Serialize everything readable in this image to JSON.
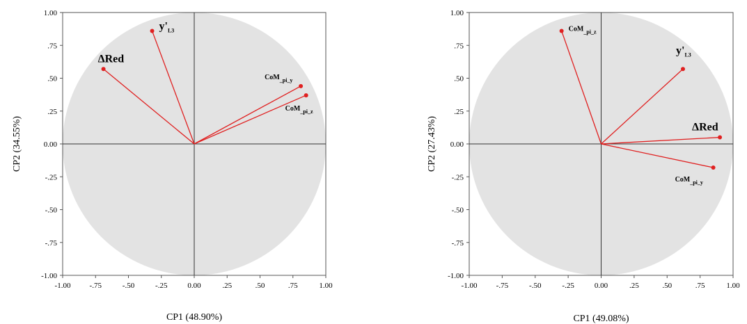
{
  "chart_data": [
    {
      "type": "scatter",
      "xlabel": "CP1 (48.90%)",
      "ylabel": "CP2 (34.55%)",
      "xlim": [
        -1,
        1
      ],
      "ylim": [
        -1,
        1
      ],
      "x_ticks": [
        "-1.00",
        "-.75",
        "-.50",
        "-.25",
        "0.00",
        ".25",
        ".50",
        ".75",
        "1.00"
      ],
      "y_ticks": [
        "1.00",
        ".75",
        ".50",
        ".25",
        "0.00",
        "-.25",
        "-.50",
        "-.75",
        "-1.00"
      ],
      "loadings": [
        {
          "label": "ΔRed",
          "main": "ΔRed",
          "sub": "",
          "x": -0.69,
          "y": 0.57
        },
        {
          "label": "y'L3",
          "main": "y'",
          "sub": "L3",
          "x": -0.32,
          "y": 0.86
        },
        {
          "label": "CoM_pi_y",
          "main": "CoM",
          "sub": "_pi_y",
          "x": 0.81,
          "y": 0.44
        },
        {
          "label": "CoM_pi_z",
          "main": "CoM",
          "sub": "_pi_z",
          "x": 0.85,
          "y": 0.37
        }
      ],
      "circle_color": "#e3e3e3",
      "vector_color": "#e02020"
    },
    {
      "type": "scatter",
      "xlabel": "CP1 (49.08%)",
      "ylabel": "CP2 (27.43%)",
      "xlim": [
        -1,
        1
      ],
      "ylim": [
        -1,
        1
      ],
      "x_ticks": [
        "-1.00",
        "-.75",
        "-.50",
        "-.25",
        "0.00",
        ".25",
        ".50",
        ".75",
        "1.00"
      ],
      "y_ticks": [
        "1.00",
        ".75",
        ".50",
        ".25",
        "0.00",
        "-.25",
        "-.50",
        "-.75",
        "-1.00"
      ],
      "loadings": [
        {
          "label": "CoM_pi_z",
          "main": "CoM",
          "sub": "_pi_z",
          "x": -0.3,
          "y": 0.86
        },
        {
          "label": "y'L3",
          "main": "y'",
          "sub": "L3",
          "x": 0.62,
          "y": 0.57
        },
        {
          "label": "ΔRed",
          "main": "ΔRed",
          "sub": "",
          "x": 0.9,
          "y": 0.05
        },
        {
          "label": "CoM_pi_y",
          "main": "CoM",
          "sub": "_pi_y",
          "x": 0.85,
          "y": -0.18
        }
      ],
      "circle_color": "#e3e3e3",
      "vector_color": "#e02020"
    }
  ]
}
